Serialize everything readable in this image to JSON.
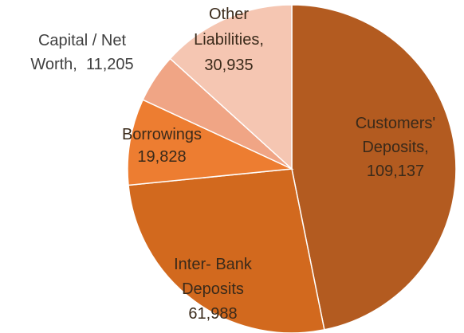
{
  "chart_data": {
    "type": "pie",
    "title": "",
    "slices": [
      {
        "name": "Customers' Deposits",
        "value": 109137,
        "value_label": "109,137",
        "label_lines": [
          "Customers'",
          "Deposits,",
          "109,137"
        ],
        "color": "#B35B20"
      },
      {
        "name": "Inter- Bank Deposits",
        "value": 61988,
        "value_label": "61,988",
        "label_lines": [
          "Inter- Bank",
          "Deposits",
          "61,988"
        ],
        "color": "#D2691E"
      },
      {
        "name": "Borrowings",
        "value": 19828,
        "value_label": "19,828",
        "label_lines": [
          "Borrowings",
          "19,828"
        ],
        "color": "#ED7D31"
      },
      {
        "name": "Capital / Net Worth",
        "value": 11205,
        "value_label": "11,205",
        "label_lines": [
          "Capital / Net",
          "Worth,  11,205"
        ],
        "color": "#F0A585"
      },
      {
        "name": "Other Liabilities",
        "value": 30935,
        "value_label": "30,935",
        "label_lines": [
          "Other",
          "Liabilities,",
          "30,935"
        ],
        "color": "#F5C6B2"
      }
    ],
    "start_angle_deg": 0,
    "direction": "clockwise",
    "legend": "none",
    "label_placement": "on-slice / outside for small slices"
  }
}
